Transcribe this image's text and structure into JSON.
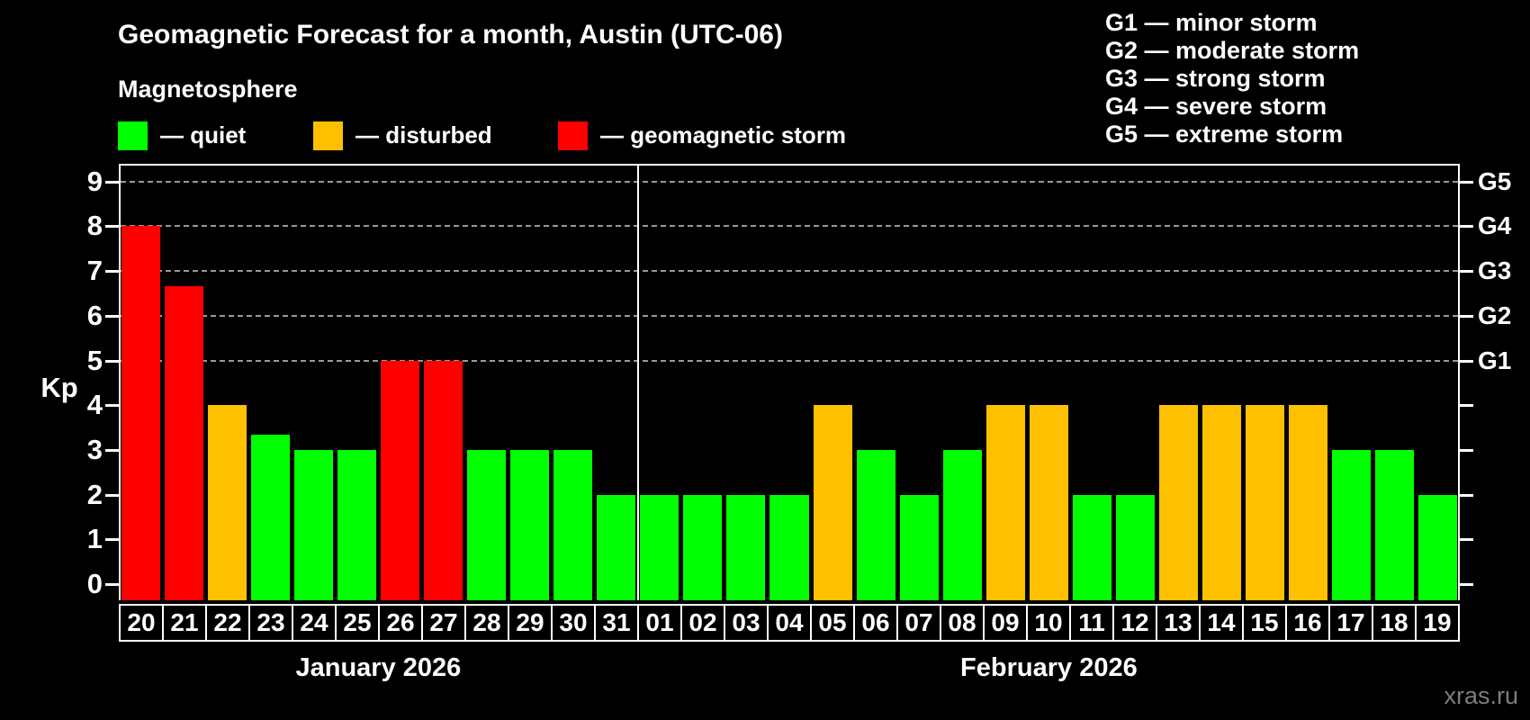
{
  "header": {
    "title": "Geomagnetic Forecast for a month, Austin (UTC-06)",
    "subtitle": "Magnetosphere"
  },
  "legend": {
    "items": [
      {
        "label": "— quiet",
        "color": "#00ff00"
      },
      {
        "label": "— disturbed",
        "color": "#ffc000"
      },
      {
        "label": "— geomagnetic storm",
        "color": "#ff0000"
      }
    ]
  },
  "g_legend": {
    "lines": [
      "G1 — minor storm",
      "G2 — moderate storm",
      "G3 — strong storm",
      "G4 — severe storm",
      "G5 — extreme storm"
    ]
  },
  "watermark": "xras.ru",
  "chart_data": {
    "type": "bar",
    "title": "Geomagnetic Forecast for a month, Austin (UTC-06)",
    "ylabel": "Kp",
    "ylim": [
      0,
      9.5
    ],
    "yticks": [
      0,
      1,
      2,
      3,
      4,
      5,
      6,
      7,
      8,
      9
    ],
    "gridlines_at": [
      5,
      6,
      7,
      8,
      9
    ],
    "grid": "dashed horizontal at G-levels only",
    "legend_position": "top",
    "right_axis_labels": [
      {
        "label": "G1",
        "value": 5
      },
      {
        "label": "G2",
        "value": 6
      },
      {
        "label": "G3",
        "value": 7
      },
      {
        "label": "G4",
        "value": 8
      },
      {
        "label": "G5",
        "value": 9
      }
    ],
    "months": [
      {
        "label": "January 2026",
        "day_count": 12
      },
      {
        "label": "February 2026",
        "day_count": 19
      }
    ],
    "categories": [
      "20",
      "21",
      "22",
      "23",
      "24",
      "25",
      "26",
      "27",
      "28",
      "29",
      "30",
      "31",
      "01",
      "02",
      "03",
      "04",
      "05",
      "06",
      "07",
      "08",
      "09",
      "10",
      "11",
      "12",
      "13",
      "14",
      "15",
      "16",
      "17",
      "18",
      "19"
    ],
    "values": [
      8,
      6.67,
      4,
      3.33,
      3,
      3,
      5,
      5,
      3,
      3,
      3,
      2,
      2,
      2,
      2,
      2,
      4,
      3,
      2,
      3,
      4,
      4,
      2,
      2,
      4,
      4,
      4,
      4,
      3,
      3,
      2
    ],
    "statuses": [
      "storm",
      "storm",
      "disturbed",
      "quiet",
      "quiet",
      "quiet",
      "storm",
      "storm",
      "quiet",
      "quiet",
      "quiet",
      "quiet",
      "quiet",
      "quiet",
      "quiet",
      "quiet",
      "disturbed",
      "quiet",
      "quiet",
      "quiet",
      "disturbed",
      "disturbed",
      "quiet",
      "quiet",
      "disturbed",
      "disturbed",
      "disturbed",
      "disturbed",
      "quiet",
      "quiet",
      "quiet"
    ],
    "status_colors": {
      "quiet": "#00ff00",
      "disturbed": "#ffc000",
      "storm": "#ff0000"
    }
  }
}
